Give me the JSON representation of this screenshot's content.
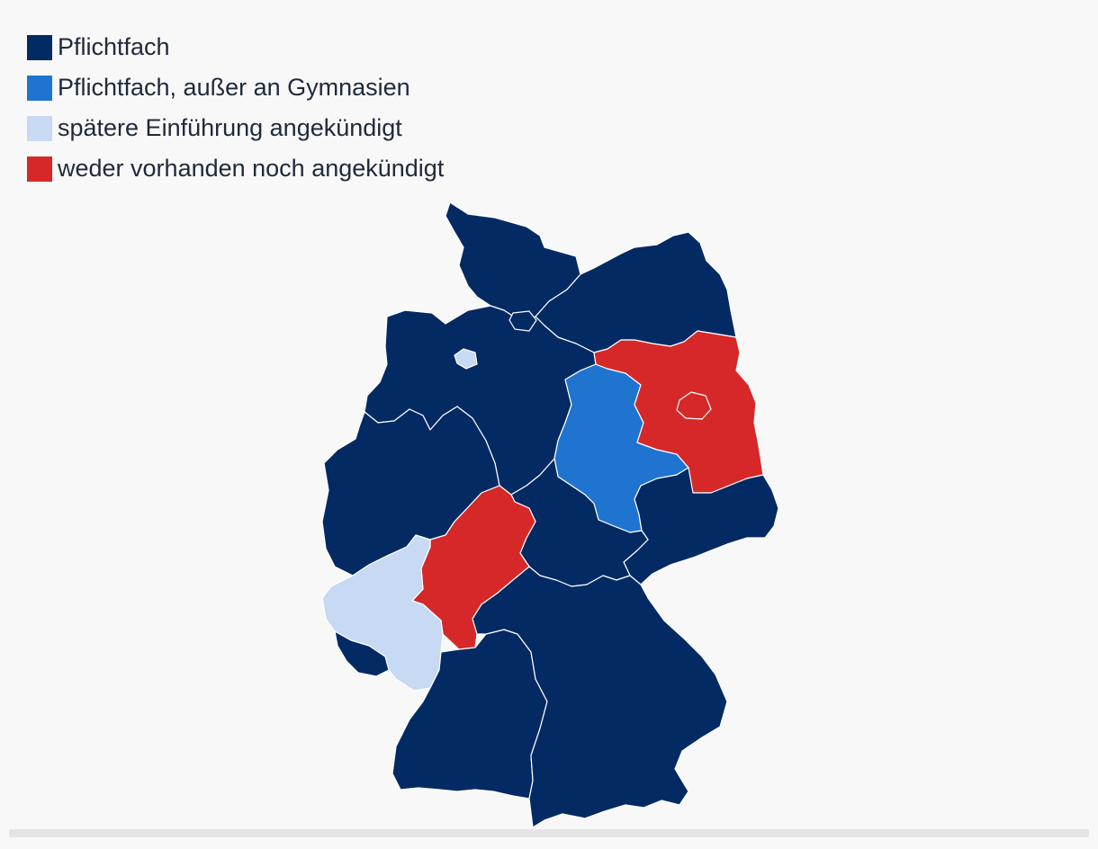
{
  "legend": [
    {
      "key": "pflicht",
      "label": "Pflichtfach",
      "color": "#032a63"
    },
    {
      "key": "pflicht_ausser_gym",
      "label": "Pflichtfach, außer an Gymnasien",
      "color": "#1f74d0"
    },
    {
      "key": "angekuendigt",
      "label": "spätere Einführung angekündigt",
      "color": "#c7d9f3"
    },
    {
      "key": "keine",
      "label": "weder vorhanden noch angekündigt",
      "color": "#d62828"
    }
  ],
  "states": [
    {
      "id": "SH",
      "status": "pflicht"
    },
    {
      "id": "HH",
      "status": "pflicht"
    },
    {
      "id": "MV",
      "status": "pflicht"
    },
    {
      "id": "NI",
      "status": "pflicht"
    },
    {
      "id": "HB",
      "status": "angekuendigt"
    },
    {
      "id": "NW",
      "status": "pflicht"
    },
    {
      "id": "ST",
      "status": "pflicht_ausser_gym"
    },
    {
      "id": "BB",
      "status": "keine"
    },
    {
      "id": "BE",
      "status": "keine"
    },
    {
      "id": "SN",
      "status": "pflicht"
    },
    {
      "id": "TH",
      "status": "pflicht"
    },
    {
      "id": "HE",
      "status": "keine"
    },
    {
      "id": "RP",
      "status": "angekuendigt"
    },
    {
      "id": "SL",
      "status": "pflicht"
    },
    {
      "id": "BW",
      "status": "pflicht"
    },
    {
      "id": "BY",
      "status": "pflicht"
    }
  ]
}
